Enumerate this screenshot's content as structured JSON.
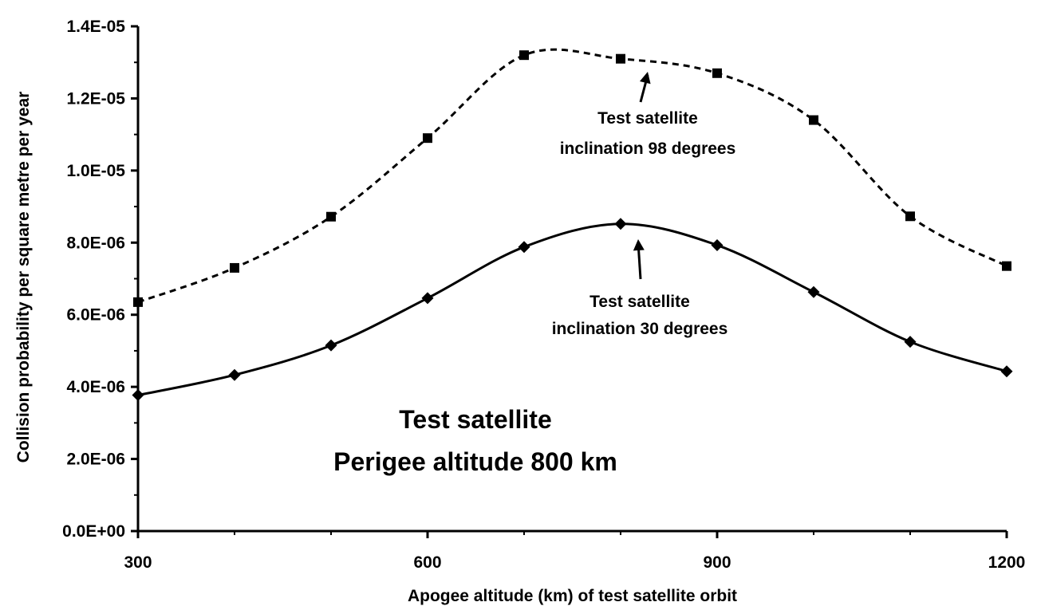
{
  "chart_data": {
    "type": "line",
    "x": [
      300,
      400,
      500,
      600,
      700,
      800,
      900,
      1000,
      1100,
      1200
    ],
    "series": [
      {
        "name": "Test satellite inclination 98 degrees",
        "style": "dashed",
        "marker": "square",
        "values": [
          6.35e-06,
          7.3e-06,
          8.72e-06,
          1.09e-05,
          1.32e-05,
          1.31e-05,
          1.27e-05,
          1.14e-05,
          8.73e-06,
          7.35e-06
        ]
      },
      {
        "name": "Test satellite inclination 30 degrees",
        "style": "solid",
        "marker": "diamond",
        "values": [
          3.77e-06,
          4.33e-06,
          5.15e-06,
          6.46e-06,
          7.88e-06,
          8.52e-06,
          7.93e-06,
          6.63e-06,
          5.25e-06,
          4.43e-06
        ]
      }
    ],
    "xlabel": "Apogee altitude (km) of test satellite orbit",
    "ylabel": "Collision probability per square metre per year",
    "xlim": [
      300,
      1200
    ],
    "ylim": [
      0,
      1.4e-05
    ],
    "xticks": [
      300,
      600,
      900,
      1200
    ],
    "xtick_labels": [
      "300",
      "600",
      "900",
      "1200"
    ],
    "yticks": [
      0,
      2e-06,
      4e-06,
      6e-06,
      8e-06,
      1e-05,
      1.2e-05,
      1.4e-05
    ],
    "ytick_labels": [
      "0.0E+00",
      "2.0E-06",
      "4.0E-06",
      "6.0E-06",
      "8.0E-06",
      "1.0E-05",
      "1.2E-05",
      "1.4E-05"
    ],
    "grid": false,
    "legend": "none",
    "annotations": [
      {
        "lines": [
          "Test satellite",
          "inclination 98 degrees"
        ],
        "points_to": {
          "x": 810,
          "y": 1.27e-05
        }
      },
      {
        "lines": [
          "Test satellite",
          "inclination 30 degrees"
        ],
        "points_to": {
          "x": 800,
          "y": 8.1e-06
        }
      }
    ],
    "note": [
      "Test satellite",
      "Perigee altitude 800 km"
    ]
  }
}
